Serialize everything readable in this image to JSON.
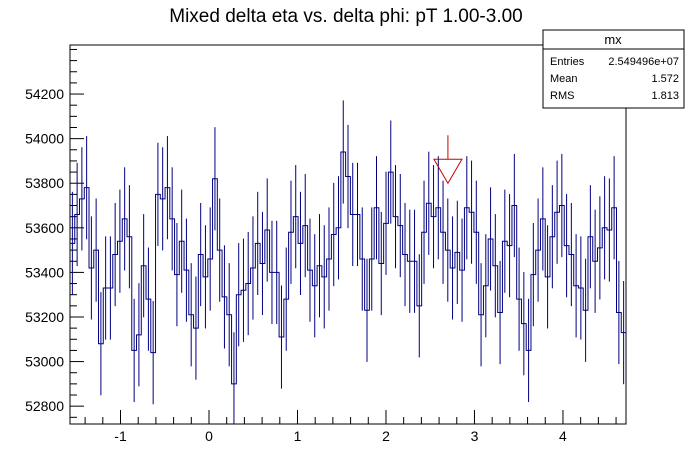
{
  "chart_data": {
    "type": "histogram",
    "title": "Mixed delta eta vs. delta phi: pT 1.00-3.00",
    "xlabel": "",
    "ylabel": "",
    "xlim": [
      -1.5708,
      4.7124
    ],
    "ylim": [
      52720,
      54420
    ],
    "x_ticks": [
      -1,
      0,
      1,
      2,
      3,
      4
    ],
    "x_tick_labels": [
      "-1",
      "0",
      "1",
      "2",
      "3",
      "4"
    ],
    "y_ticks": [
      52800,
      53000,
      53200,
      53400,
      53600,
      53800,
      54000,
      54200
    ],
    "y_tick_labels": [
      "52800",
      "53000",
      "53200",
      "53400",
      "53600",
      "53800",
      "54000",
      "54200"
    ],
    "grid": false,
    "line_color": "#000080",
    "marker": {
      "x": 2.7,
      "y": 53800,
      "shape": "open-triangle-down",
      "color": "#cc0000"
    },
    "stats_box": {
      "name": "mx",
      "rows": [
        {
          "label": "Entries",
          "value": "2.549496e+07"
        },
        {
          "label": "Mean",
          "value": "1.572"
        },
        {
          "label": "RMS",
          "value": "1.813"
        }
      ]
    },
    "values": [
      53530,
      53660,
      53730,
      53780,
      53420,
      53500,
      53080,
      53330,
      53330,
      53480,
      53540,
      53640,
      53560,
      53050,
      53120,
      53430,
      53280,
      53040,
      53750,
      53730,
      53780,
      53640,
      53390,
      53540,
      53410,
      53210,
      53150,
      53480,
      53380,
      53460,
      53820,
      53500,
      53290,
      53210,
      52900,
      53300,
      53320,
      53350,
      53420,
      53530,
      53440,
      53590,
      53400,
      53400,
      53110,
      53280,
      53580,
      53650,
      53530,
      53610,
      53410,
      53340,
      53430,
      53380,
      53460,
      53570,
      53600,
      53940,
      53830,
      53660,
      53660,
      53460,
      53230,
      53460,
      53690,
      53440,
      53620,
      53850,
      53650,
      53610,
      53480,
      53450,
      53450,
      53250,
      53580,
      53710,
      53650,
      53690,
      53580,
      53500,
      53420,
      53490,
      53410,
      53690,
      53670,
      53580,
      53210,
      53340,
      53550,
      53430,
      53220,
      53540,
      53520,
      53700,
      53280,
      53170,
      53050,
      53390,
      53500,
      53640,
      53380,
      53560,
      53670,
      53700,
      53520,
      53480,
      53340,
      53330,
      53230,
      53560,
      53450,
      53510,
      53600,
      53590,
      53690,
      53220,
      53130
    ]
  }
}
